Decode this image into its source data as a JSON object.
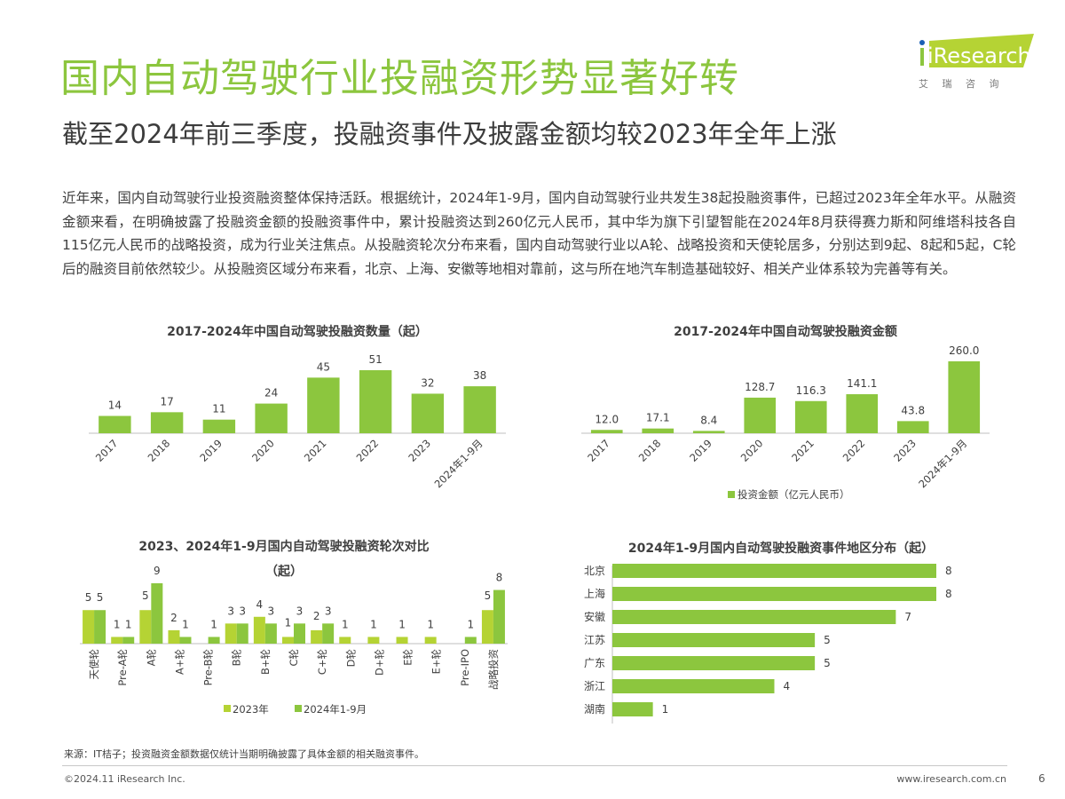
{
  "header": {
    "title": "国内自动驾驶行业投融资形势显著好转",
    "subtitle": "截至2024年前三季度，投融资事件及披露金额均较2023年全年上涨",
    "logo_text": "iResearch",
    "logo_cn": "艾 瑞 咨 询"
  },
  "body": {
    "paragraph": "近年来，国内自动驾驶行业投资融资整体保持活跃。根据统计，2024年1-9月，国内自动驾驶行业共发生38起投融资事件，已超过2023年全年水平。从融资金额来看，在明确披露了投融资金额的投融资事件中，累计投融资达到260亿元人民币，其中华为旗下引望智能在2024年8月获得赛力斯和阿维塔科技各自115亿元人民币的战略投资，成为行业关注焦点。从投融资轮次分布来看，国内自动驾驶行业以A轮、战略投资和天使轮居多，分别达到9起、8起和5起，C轮后的融资目前依然较少。从投融资区域分布来看，北京、上海、安徽等地相对靠前，这与所在地汽车制造基础较好、相关产业体系较为完善等有关。"
  },
  "colors": {
    "accent": "#8cc63e",
    "light": "#b5d334",
    "title": "#8cc63e"
  },
  "chart_data": [
    {
      "type": "bar",
      "title": "2017-2024年中国自动驾驶投融资数量（起）",
      "categories": [
        "2017",
        "2018",
        "2019",
        "2020",
        "2021",
        "2022",
        "2023",
        "2024年1-9月"
      ],
      "values": [
        14,
        17,
        11,
        24,
        45,
        51,
        32,
        38
      ],
      "color": "#8cc63e"
    },
    {
      "type": "bar",
      "title": "2017-2024年中国自动驾驶投融资金额",
      "categories": [
        "2017",
        "2018",
        "2019",
        "2020",
        "2021",
        "2022",
        "2023",
        "2024年1-9月"
      ],
      "values": [
        12.0,
        17.1,
        8.4,
        128.7,
        116.3,
        141.1,
        43.8,
        260.0
      ],
      "series_name": "投资金额（亿元人民币）",
      "legend": "bottom",
      "color": "#8cc63e"
    },
    {
      "type": "bar",
      "title": "2023、2024年1-9月国内自动驾驶投融资轮次对比",
      "title2": "（起）",
      "categories": [
        "天使轮",
        "Pre-A轮",
        "A轮",
        "A+轮",
        "Pre-B轮",
        "B轮",
        "B+轮",
        "C轮",
        "C+轮",
        "D轮",
        "D+轮",
        "E轮",
        "E+轮",
        "Pre-IPO",
        "战略投资"
      ],
      "series": [
        {
          "name": "2023年",
          "values": [
            5,
            1,
            5,
            2,
            0,
            3,
            4,
            1,
            2,
            1,
            1,
            1,
            1,
            0,
            5
          ],
          "color": "#b5d334"
        },
        {
          "name": "2024年1-9月",
          "values": [
            5,
            1,
            9,
            1,
            1,
            3,
            3,
            3,
            3,
            0,
            0,
            0,
            0,
            1,
            8
          ],
          "color": "#8cc63e"
        }
      ],
      "legend": "bottom"
    },
    {
      "type": "bar",
      "orientation": "horizontal",
      "title": "2024年1-9月国内自动驾驶投融资事件地区分布（起）",
      "categories": [
        "北京",
        "上海",
        "安徽",
        "江苏",
        "广东",
        "浙江",
        "湖南"
      ],
      "values": [
        8,
        8,
        7,
        5,
        5,
        4,
        1
      ],
      "color": "#8cc63e"
    }
  ],
  "footer": {
    "source": "来源：IT桔子；投资融资金额数据仅统计当期明确披露了具体金额的相关融资事件。",
    "copyright": "©2024.11 iResearch Inc.",
    "website": "www.iresearch.com.cn",
    "page": "6"
  }
}
